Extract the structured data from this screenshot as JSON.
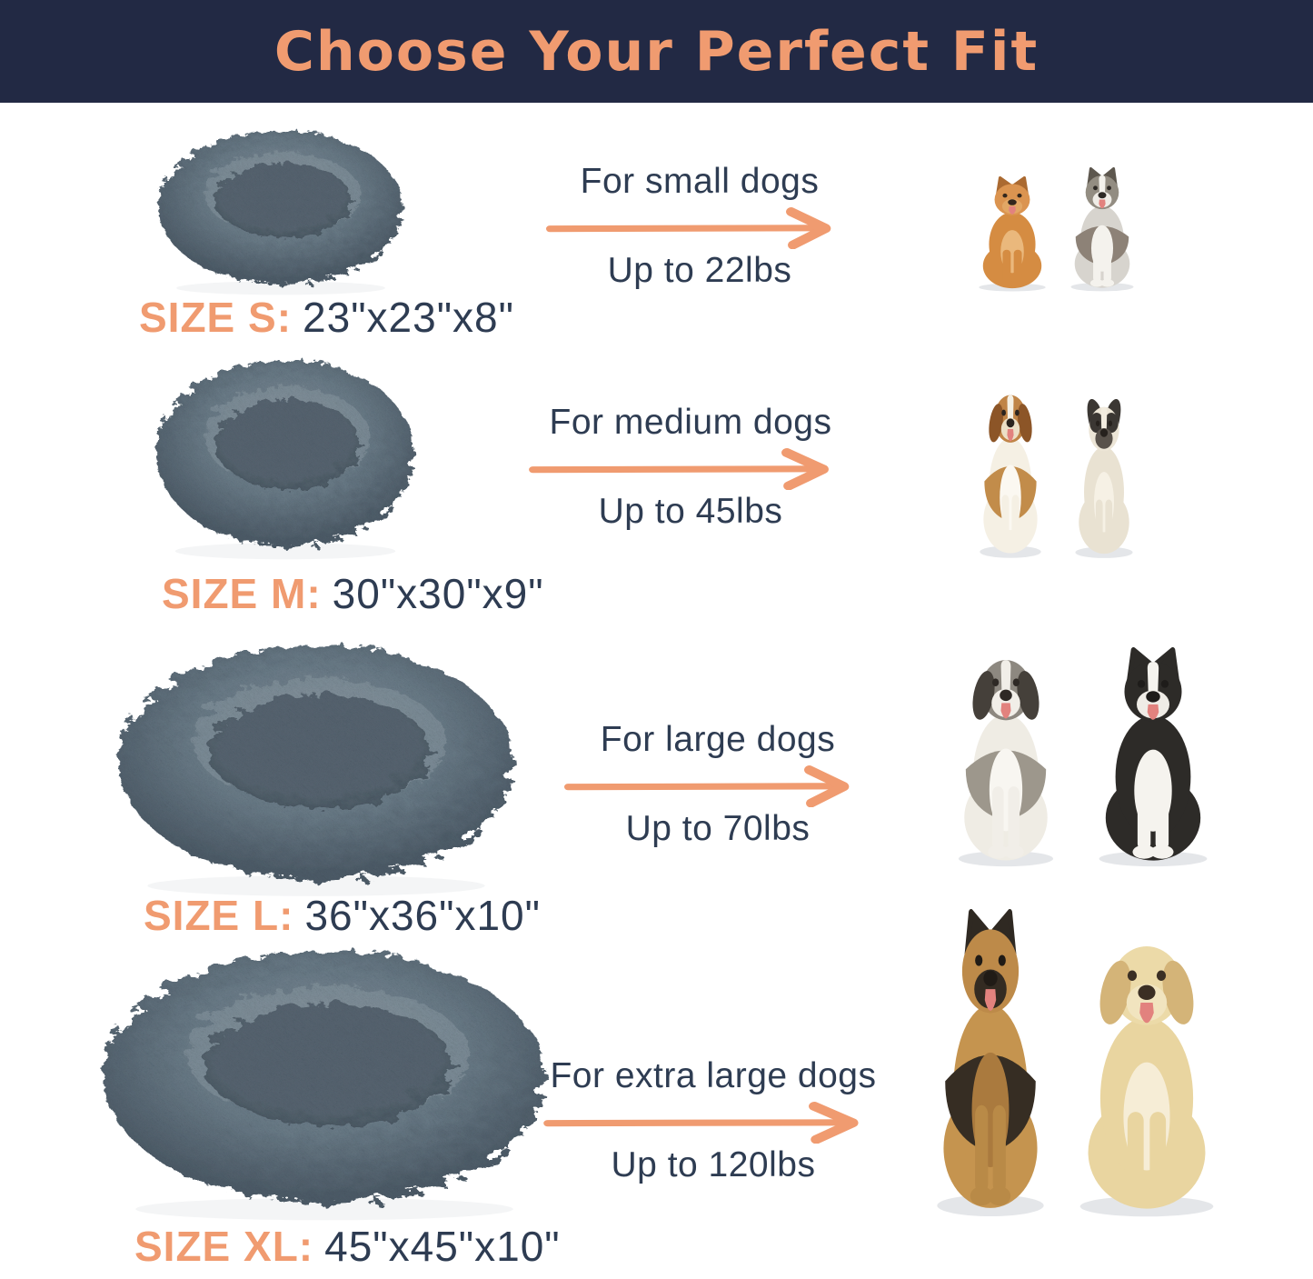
{
  "colors": {
    "header_bg": "#222944",
    "accent": "#f09b70",
    "text": "#2e3c52",
    "bed": {
      "fur_light": "#85939d",
      "fur_mid": "#697a86",
      "fur_dark": "#4e5c68",
      "rim_highlight": "#8b99a3",
      "cushion": "#56646f",
      "cushion_dark": "#45525c",
      "speckle": "#36424c"
    }
  },
  "icons": {
    "arrow": "arrow-right-icon"
  },
  "header": {
    "title": "Choose Your Perfect Fit"
  },
  "rows": [
    {
      "size_label": "SIZE S:",
      "size_value": "23\"x23\"x8\"",
      "audience": "For small dogs",
      "weight": "Up to 22lbs",
      "dogs": [
        {
          "breed": "pomeranian",
          "ears": "up",
          "ear": "#ab6a31",
          "head": "#db9450",
          "body": "#d58c42",
          "chest": "#eab87c",
          "legs": "#d58c42",
          "muzzle": "#e2a765",
          "nose": "#33271d",
          "blaze": false,
          "eyepatches": false,
          "saddle": false,
          "tongue": true
        },
        {
          "breed": "biewer-terrier",
          "ears": "up",
          "ear": "#5d574e",
          "head": "#938d82",
          "body": "#d7d4ce",
          "chest": "#f4f2ed",
          "legs": "#f4f2ed",
          "muzzle": "#efece6",
          "nose": "#2e2a26",
          "blaze": "#f4f2ed",
          "eyepatches": false,
          "saddle": "#8d8277",
          "tongue": true
        }
      ]
    },
    {
      "size_label": "SIZE M:",
      "size_value": "30\"x30\"x9\"",
      "audience": "For medium dogs",
      "weight": "Up to 45lbs",
      "dogs": [
        {
          "breed": "beagle",
          "ears": "floppy",
          "ear": "#8c5527",
          "head": "#c08446",
          "body": "#f5f0e4",
          "chest": "#fbf8f1",
          "legs": "#f5f0e4",
          "muzzle": "#ecdfc6",
          "nose": "#2b241e",
          "blaze": "#f5f0e4",
          "eyepatches": false,
          "saddle": "#c28c4a",
          "tongue": true
        },
        {
          "breed": "french-bulldog",
          "ears": "bat",
          "ear": "#3b3733",
          "head": "#ece5d6",
          "body": "#e9e2d2",
          "chest": "#f6f1e5",
          "legs": "#e9e2d2",
          "muzzle": "#59524b",
          "nose": "#26211d",
          "blaze": "#f2ecdf",
          "eyepatches": "#3b3733",
          "saddle": false,
          "tongue": false
        }
      ]
    },
    {
      "size_label": "SIZE L:",
      "size_value": "36\"x36\"x10\"",
      "audience": "For large dogs",
      "weight": "Up to 70lbs",
      "dogs": [
        {
          "breed": "australian-shepherd",
          "ears": "floppy",
          "ear": "#45403a",
          "head": "#8d8880",
          "body": "#efece4",
          "chest": "#f8f6f1",
          "legs": "#f1eee8",
          "muzzle": "#f1eee8",
          "nose": "#2e2925",
          "blaze": "#f1eee8",
          "eyepatches": false,
          "saddle": "#9d978c",
          "tongue": true
        },
        {
          "breed": "border-collie",
          "ears": "up",
          "ear": "#2d2b28",
          "head": "#2d2b28",
          "body": "#2d2b28",
          "chest": "#f5f3ee",
          "legs": "#f5f3ee",
          "muzzle": "#efece6",
          "nose": "#1e1c1a",
          "blaze": "#f5f3ee",
          "eyepatches": false,
          "saddle": false,
          "tongue": true
        }
      ]
    },
    {
      "size_label": "SIZE XL:",
      "size_value": "45\"x45\"x10\"",
      "audience": "For extra large dogs",
      "weight": "Up to 120lbs",
      "dogs": [
        {
          "breed": "german-shepherd",
          "ears": "up",
          "ear": "#2f2922",
          "head": "#bd8a49",
          "body": "#c5944f",
          "chest": "#aa7a3e",
          "legs": "#b98a47",
          "muzzle": "#332b22",
          "nose": "#201b16",
          "blaze": false,
          "eyepatches": false,
          "saddle": "#362d23",
          "tongue": true
        },
        {
          "breed": "golden-retriever",
          "ears": "floppy",
          "ear": "#d4b478",
          "head": "#ecdaa8",
          "body": "#e9d5a0",
          "chest": "#f6edd6",
          "legs": "#e9d5a0",
          "muzzle": "#f1e4bf",
          "nose": "#3b2f24",
          "blaze": false,
          "eyepatches": false,
          "saddle": false,
          "tongue": true
        }
      ]
    }
  ]
}
